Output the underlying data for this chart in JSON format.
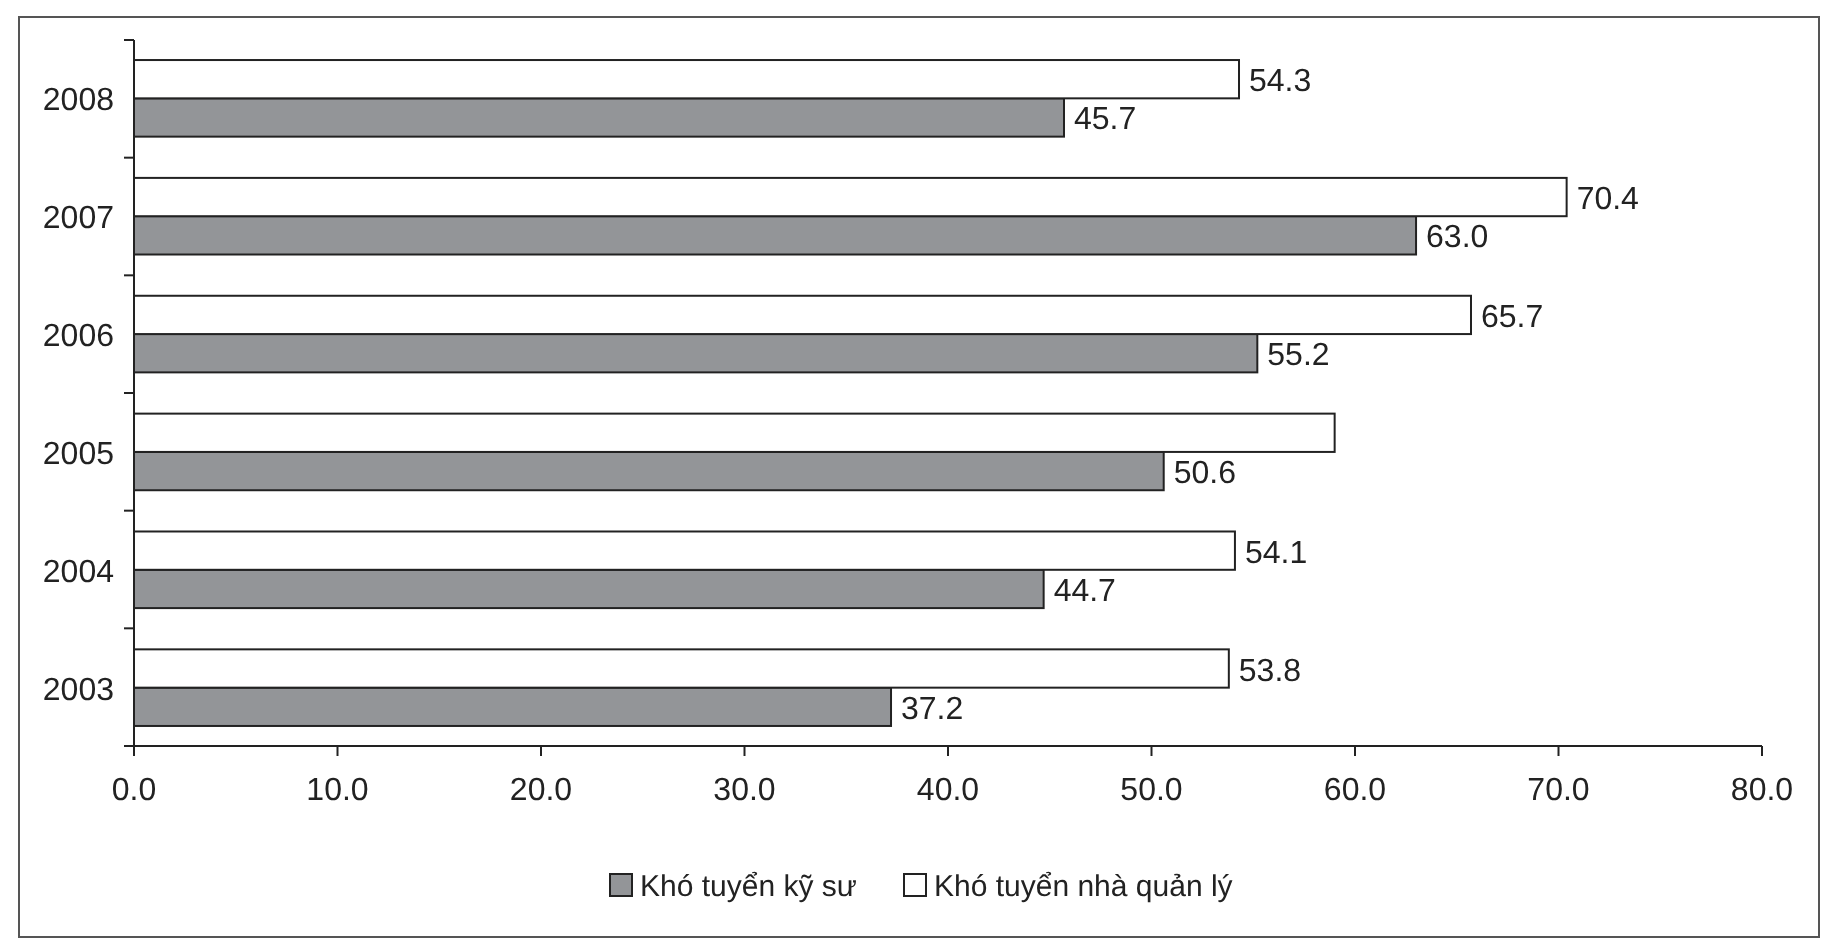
{
  "chart_data": {
    "type": "bar",
    "orientation": "horizontal",
    "categories": [
      "2008",
      "2007",
      "2006",
      "2005",
      "2004",
      "2003"
    ],
    "xlim": [
      0,
      80
    ],
    "xticks": [
      {
        "value": 0,
        "label": "0.0"
      },
      {
        "value": 10,
        "label": "10.0"
      },
      {
        "value": 20,
        "label": "20.0"
      },
      {
        "value": 30,
        "label": "30.0"
      },
      {
        "value": 40,
        "label": "40.0"
      },
      {
        "value": 50,
        "label": "50.0"
      },
      {
        "value": 60,
        "label": "60.0"
      },
      {
        "value": 70,
        "label": "70.0"
      },
      {
        "value": 80,
        "label": "80.0"
      }
    ],
    "grid": false,
    "legend": "bottom",
    "series": [
      {
        "name": "Khó tuyển kỹ sư",
        "color": "#939598",
        "values": [
          45.7,
          63.0,
          55.2,
          50.6,
          44.7,
          37.2
        ],
        "value_labels": [
          "45.7",
          "63.0",
          "55.2",
          "50.6",
          "44.7",
          "37.2"
        ]
      },
      {
        "name": "Khó tuyển nhà quản lý",
        "color": "#ffffff",
        "values": [
          54.3,
          70.4,
          65.7,
          59.0,
          54.1,
          53.8
        ],
        "value_labels": [
          "54.3",
          "70.4",
          "65.7",
          null,
          "54.1",
          "53.8"
        ]
      }
    ]
  }
}
